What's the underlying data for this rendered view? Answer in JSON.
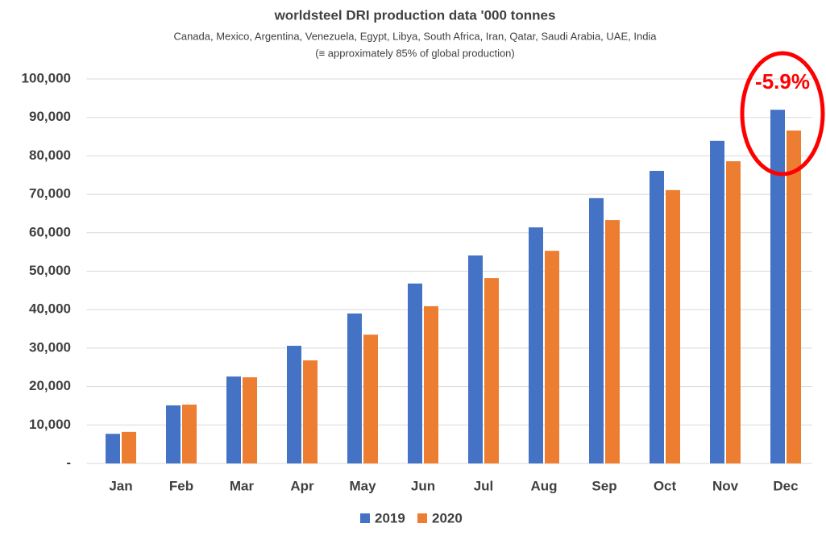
{
  "chart_data": {
    "type": "bar",
    "title": "worldsteel DRI production  data '000 tonnes",
    "subtitle": "Canada, Mexico, Argentina, Venezuela, Egypt, Libya, South Africa, Iran, Qatar, Saudi Arabia, UAE, India",
    "subtitle2": "(≡ approximately 85% of global production)",
    "annotation": "-5.9%",
    "categories": [
      "Jan",
      "Feb",
      "Mar",
      "Apr",
      "May",
      "Jun",
      "Jul",
      "Aug",
      "Sep",
      "Oct",
      "Nov",
      "Dec"
    ],
    "series": [
      {
        "name": "2019",
        "color": "#4472c4",
        "values": [
          7700,
          15100,
          22600,
          30600,
          39000,
          46800,
          54100,
          61400,
          69000,
          76100,
          83900,
          92000
        ]
      },
      {
        "name": "2020",
        "color": "#ed7d31",
        "values": [
          8200,
          15300,
          22400,
          26800,
          33500,
          40900,
          48200,
          55300,
          63300,
          71100,
          78600,
          86600
        ]
      }
    ],
    "ylim": [
      0,
      100000
    ],
    "yticks": [
      {
        "value": 0,
        "label": "-"
      },
      {
        "value": 10000,
        "label": "10,000"
      },
      {
        "value": 20000,
        "label": "20,000"
      },
      {
        "value": 30000,
        "label": "30,000"
      },
      {
        "value": 40000,
        "label": "40,000"
      },
      {
        "value": 50000,
        "label": "50,000"
      },
      {
        "value": 60000,
        "label": "60,000"
      },
      {
        "value": 70000,
        "label": "70,000"
      },
      {
        "value": 80000,
        "label": "80,000"
      },
      {
        "value": 90000,
        "label": "90,000"
      },
      {
        "value": 100000,
        "label": "100,000"
      }
    ],
    "grid": true,
    "legend": "bottom"
  }
}
